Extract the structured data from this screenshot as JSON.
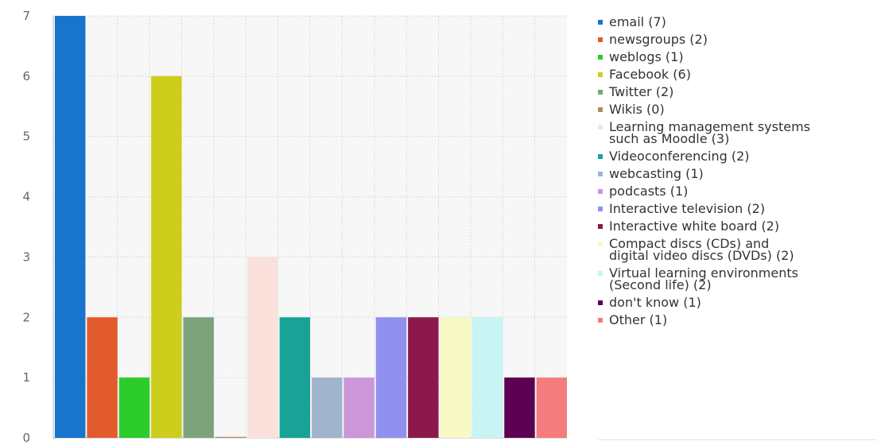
{
  "chart_data": {
    "type": "bar",
    "categories": [
      "email",
      "newsgroups",
      "weblogs",
      "Facebook",
      "Twitter",
      "Wikis",
      "Learning management systems such as Moodle",
      "Videoconferencing",
      "webcasting",
      "podcasts",
      "Interactive television",
      "Interactive white board",
      "Compact discs (CDs) and digital video discs (DVDs)",
      "Virtual learning environments (Second life)",
      "don't know",
      "Other"
    ],
    "values": [
      7,
      2,
      1,
      6,
      2,
      0,
      3,
      2,
      1,
      1,
      2,
      2,
      2,
      2,
      1,
      1
    ],
    "colors": [
      "#1874cd",
      "#e35a2d",
      "#2ccc2c",
      "#cdcd1c",
      "#7ca37c",
      "#b08c5c",
      "#fae1dc",
      "#18a396",
      "#a0b4cc",
      "#cc96d8",
      "#9090ee",
      "#8b1a4a",
      "#f8f8c4",
      "#c8f4f4",
      "#5c0053",
      "#f47c7c"
    ],
    "ylim": [
      0,
      7
    ],
    "yticks": [
      "0",
      "1",
      "2",
      "3",
      "4",
      "5",
      "6",
      "7"
    ],
    "grid": true,
    "legend_position": "right",
    "legend": [
      "email (7)",
      "newsgroups (2)",
      "weblogs (1)",
      "Facebook (6)",
      "Twitter (2)",
      "Wikis (0)",
      "Learning management systems\nsuch as Moodle (3)",
      "Videoconferencing (2)",
      "webcasting (1)",
      "podcasts (1)",
      "Interactive television (2)",
      "Interactive white board (2)",
      "Compact discs (CDs) and\ndigital video discs (DVDs) (2)",
      "Virtual learning environments\n(Second life) (2)",
      "don't know (1)",
      "Other (1)"
    ]
  }
}
